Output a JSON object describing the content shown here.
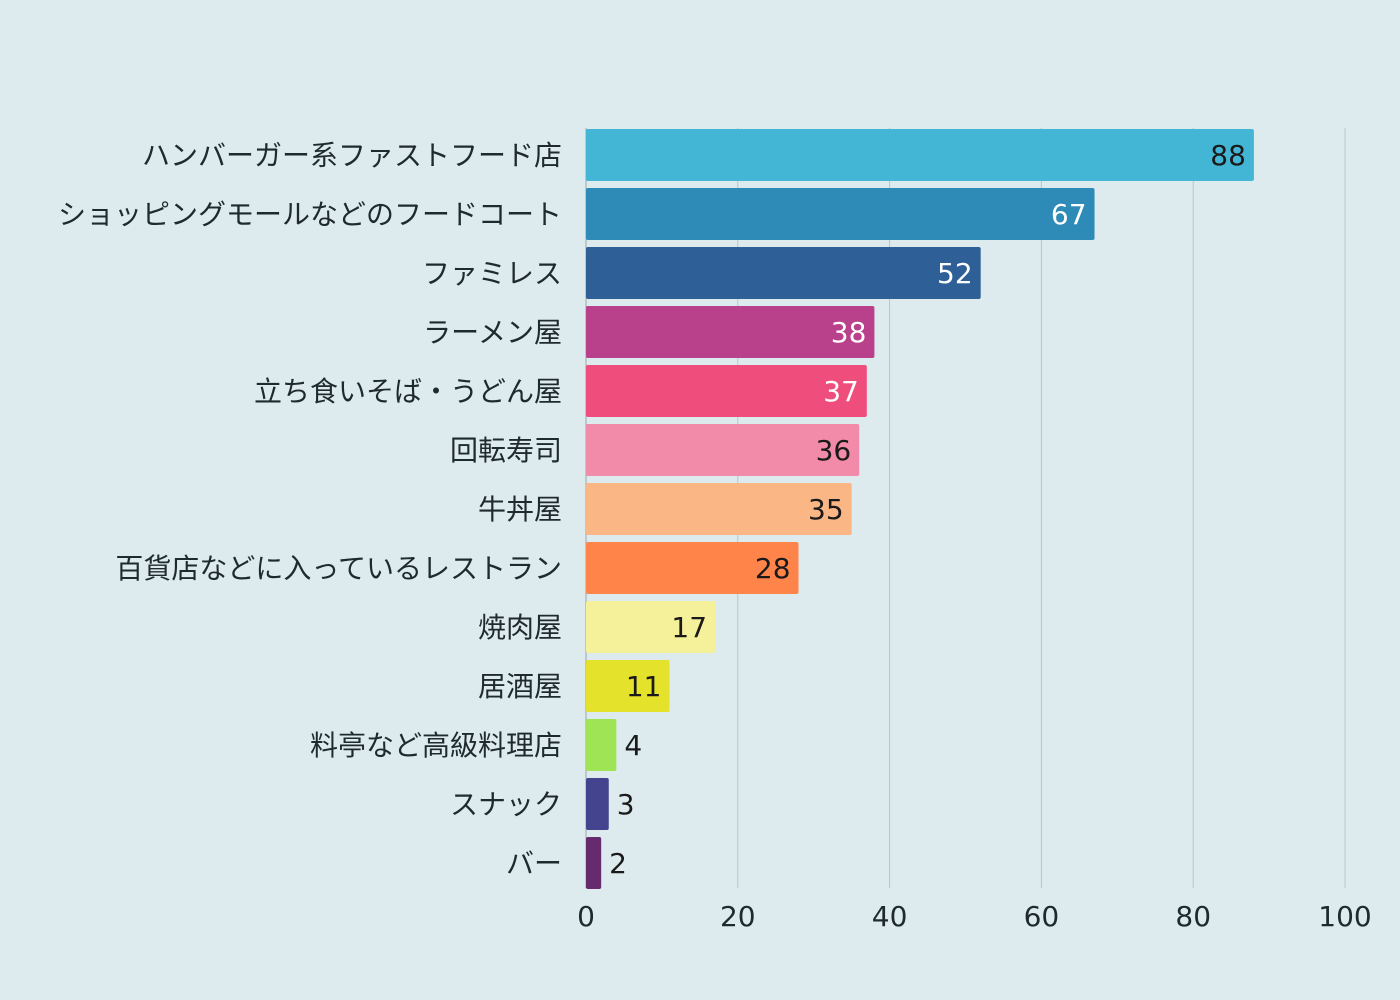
{
  "chart_data": {
    "type": "bar",
    "orientation": "horizontal",
    "categories": [
      "ハンバーガー系ファストフード店",
      "ショッピングモールなどのフードコート",
      "ファミレス",
      "ラーメン屋",
      "立ち食いそば・うどん屋",
      "回転寿司",
      "牛丼屋",
      "百貨店などに入っているレストラン",
      "焼肉屋",
      "居酒屋",
      "料亭など高級料理店",
      "スナック",
      "バー"
    ],
    "values": [
      88,
      67,
      52,
      38,
      37,
      36,
      35,
      28,
      17,
      11,
      4,
      3,
      2
    ],
    "value_labels": [
      "88",
      "67",
      "52",
      "38",
      "37",
      "36",
      "35",
      "28",
      "17",
      "11",
      "4",
      "3",
      "2"
    ],
    "colors": [
      "#43b6d6",
      "#2e8bb8",
      "#2e5f96",
      "#b9408a",
      "#ef4e7c",
      "#f28aaa",
      "#fbb686",
      "#ff844a",
      "#f5f19a",
      "#e5e22c",
      "#9ee455",
      "#44448e",
      "#652b6e"
    ],
    "label_colors": [
      "#1a1a1a",
      "#ffffff",
      "#ffffff",
      "#ffffff",
      "#ffffff",
      "#1a1a1a",
      "#1a1a1a",
      "#1a1a1a",
      "#1a1a1a",
      "#1a1a1a",
      "#1a1a1a",
      "#1a1a1a",
      "#1a1a1a"
    ],
    "xlim": [
      0,
      100
    ],
    "xticks": [
      0,
      20,
      40,
      60,
      80,
      100
    ],
    "xtick_labels": [
      "0",
      "20",
      "40",
      "60",
      "80",
      "100"
    ],
    "grid": true,
    "title": "",
    "xlabel": "",
    "ylabel": ""
  }
}
